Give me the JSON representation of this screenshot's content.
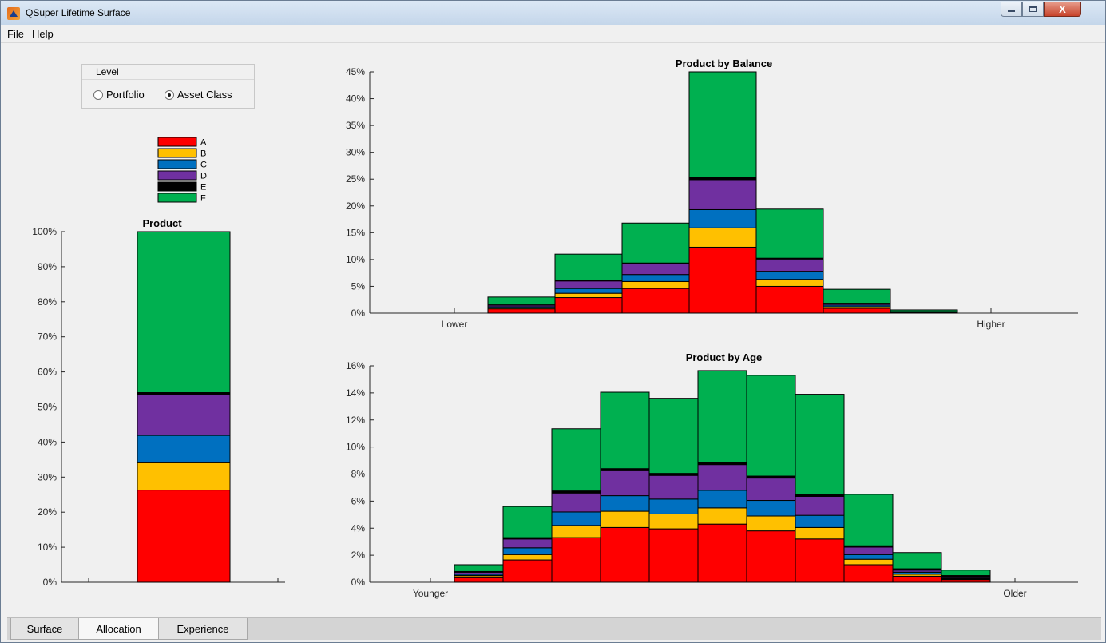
{
  "window": {
    "title": "QSuper Lifetime Surface",
    "close_glyph": "X"
  },
  "menu": [
    "File",
    "Help"
  ],
  "level_panel": {
    "title": "Level",
    "options": [
      {
        "label": "Portfolio",
        "selected": false
      },
      {
        "label": "Asset Class",
        "selected": true
      }
    ]
  },
  "tabs": [
    {
      "label": "Surface",
      "active": false
    },
    {
      "label": "Allocation",
      "active": true
    },
    {
      "label": "Experience",
      "active": false
    }
  ],
  "colors": {
    "A": "#ff0000",
    "B": "#ffc000",
    "C": "#0070c0",
    "D": "#7030a0",
    "E": "#000000",
    "F": "#00b050"
  },
  "chart_data": [
    {
      "type": "bar",
      "stacked": true,
      "title": "Product",
      "categories": [
        ""
      ],
      "ylim": [
        0,
        100
      ],
      "ytick_step": 10,
      "ytick_suffix": "%",
      "legend_placement": "above",
      "series": [
        {
          "name": "A",
          "values": [
            26.3
          ]
        },
        {
          "name": "B",
          "values": [
            7.8
          ]
        },
        {
          "name": "C",
          "values": [
            7.8
          ]
        },
        {
          "name": "D",
          "values": [
            11.6
          ]
        },
        {
          "name": "E",
          "values": [
            0.6
          ]
        },
        {
          "name": "F",
          "values": [
            45.9
          ]
        }
      ]
    },
    {
      "type": "bar",
      "stacked": true,
      "title": "Product by Balance",
      "x_end_labels": [
        "Lower",
        "Higher"
      ],
      "categories": [
        "1",
        "2",
        "3",
        "4",
        "5",
        "6",
        "7",
        "8"
      ],
      "ylim": [
        0,
        45
      ],
      "ytick_step": 5,
      "ytick_suffix": "%",
      "series": [
        {
          "name": "A",
          "values": [
            0.8,
            2.9,
            4.6,
            12.3,
            5.0,
            0.9,
            0.1,
            0.0
          ]
        },
        {
          "name": "B",
          "values": [
            0.2,
            0.8,
            1.3,
            3.6,
            1.3,
            0.3,
            0.05,
            0.0
          ]
        },
        {
          "name": "C",
          "values": [
            0.2,
            0.9,
            1.3,
            3.4,
            1.5,
            0.3,
            0.05,
            0.0
          ]
        },
        {
          "name": "D",
          "values": [
            0.3,
            1.4,
            2.0,
            5.6,
            2.3,
            0.3,
            0.05,
            0.0
          ]
        },
        {
          "name": "E",
          "values": [
            0.05,
            0.15,
            0.15,
            0.4,
            0.15,
            0.05,
            0.05,
            0.0
          ]
        },
        {
          "name": "F",
          "values": [
            1.45,
            4.85,
            7.45,
            19.7,
            9.15,
            2.6,
            0.3,
            0.0
          ]
        }
      ]
    },
    {
      "type": "bar",
      "stacked": true,
      "title": "Product by Age",
      "x_end_labels": [
        "Younger",
        "Older"
      ],
      "categories": [
        "1",
        "2",
        "3",
        "4",
        "5",
        "6",
        "7",
        "8",
        "9",
        "10",
        "11",
        "12"
      ],
      "ylim": [
        0,
        16
      ],
      "ytick_step": 2,
      "ytick_suffix": "%",
      "series": [
        {
          "name": "A",
          "values": [
            0.4,
            1.65,
            3.3,
            4.05,
            3.95,
            4.3,
            3.8,
            3.2,
            1.3,
            0.45,
            0.2,
            0.0
          ]
        },
        {
          "name": "B",
          "values": [
            0.1,
            0.4,
            0.9,
            1.2,
            1.1,
            1.2,
            1.1,
            0.85,
            0.4,
            0.15,
            0.05,
            0.0
          ]
        },
        {
          "name": "C",
          "values": [
            0.1,
            0.5,
            1.0,
            1.15,
            1.1,
            1.3,
            1.15,
            0.9,
            0.35,
            0.15,
            0.05,
            0.0
          ]
        },
        {
          "name": "D",
          "values": [
            0.15,
            0.65,
            1.4,
            1.85,
            1.75,
            1.9,
            1.65,
            1.4,
            0.55,
            0.15,
            0.1,
            0.0
          ]
        },
        {
          "name": "E",
          "values": [
            0.05,
            0.1,
            0.15,
            0.15,
            0.15,
            0.15,
            0.15,
            0.15,
            0.1,
            0.1,
            0.1,
            0.0
          ]
        },
        {
          "name": "F",
          "values": [
            0.5,
            2.3,
            4.6,
            5.65,
            5.55,
            6.8,
            7.45,
            7.4,
            3.8,
            1.2,
            0.4,
            0.0
          ]
        }
      ]
    }
  ]
}
